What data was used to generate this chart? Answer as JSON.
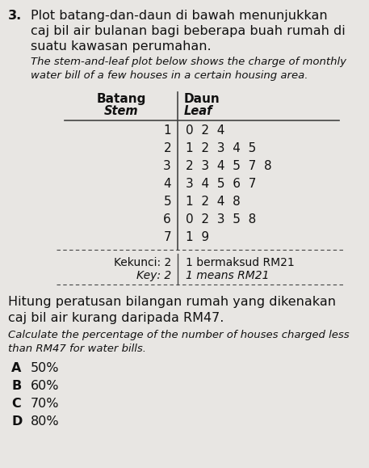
{
  "question_number": "3.",
  "malay_title_lines": [
    "Plot batang-dan-daun di bawah menunjukkan",
    "caj bil air bulanan bagi beberapa buah rumah di",
    "suatu kawasan perumahan."
  ],
  "english_title_lines": [
    "The stem-and-leaf plot below shows the charge of monthly",
    "water bill of a few houses in a certain housing area."
  ],
  "col_header_left": "Batang",
  "col_header_left2": "Stem",
  "col_header_right": "Daun",
  "col_header_right2": "Leaf",
  "stems": [
    1,
    2,
    3,
    4,
    5,
    6,
    7
  ],
  "leaves": [
    [
      0,
      2,
      4
    ],
    [
      1,
      2,
      3,
      4,
      5
    ],
    [
      2,
      3,
      4,
      5,
      7,
      8
    ],
    [
      3,
      4,
      5,
      6,
      7
    ],
    [
      1,
      2,
      4,
      8
    ],
    [
      0,
      2,
      3,
      5,
      8
    ],
    [
      1,
      9
    ]
  ],
  "key_malay_left": "Kekunci: 2",
  "key_malay_right": "1 bermaksud RM21",
  "key_english_left": "Key: 2",
  "key_english_right": "1 means RM21",
  "question_malay_lines": [
    "Hitung peratusan bilangan rumah yang dikenakan",
    "caj bil air kurang daripada RM47."
  ],
  "question_english_lines": [
    "Calculate the percentage of the number of houses charged less",
    "than RM47 for water bills."
  ],
  "options": [
    "A",
    "B",
    "C",
    "D"
  ],
  "option_values": [
    "50%",
    "60%",
    "70%",
    "80%"
  ],
  "bg_color": "#e8e6e3",
  "text_color": "#111111",
  "line_color": "#444444",
  "malay_fontsize": 11.5,
  "english_fontsize": 9.5,
  "table_fontsize": 11,
  "q_fontsize": 11.5,
  "opt_fontsize": 11.5
}
